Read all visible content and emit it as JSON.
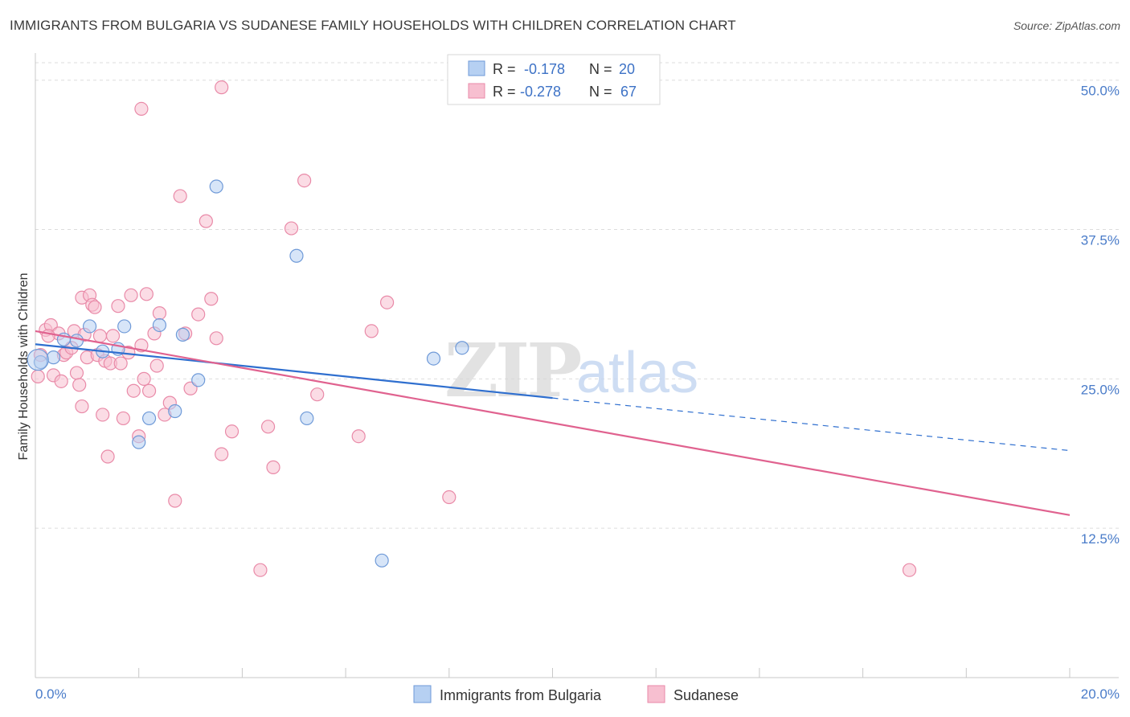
{
  "title": "IMMIGRANTS FROM BULGARIA VS SUDANESE FAMILY HOUSEHOLDS WITH CHILDREN CORRELATION CHART",
  "source": "Source: ZipAtlas.com",
  "watermark": {
    "zip": "ZIP",
    "atlas": "atlas"
  },
  "colors": {
    "blue_fill": "#b6d0f2",
    "blue_stroke": "#6f9ad8",
    "blue_line": "#2f6fcf",
    "pink_fill": "#f7bfd0",
    "pink_stroke": "#e98aa8",
    "pink_line": "#e0628f",
    "axis_text": "#4a7cc9",
    "grid": "#dddddd"
  },
  "legend": {
    "rows": [
      {
        "r_label": "R =",
        "r_value": "-0.178",
        "n_label": "N =",
        "n_value": "20"
      },
      {
        "r_label": "R =",
        "r_value": "-0.278",
        "n_label": "N =",
        "n_value": "67"
      }
    ]
  },
  "bottom_legend": [
    "Immigrants from Bulgaria",
    "Sudanese"
  ],
  "chart_data": {
    "type": "scatter",
    "title": "IMMIGRANTS FROM BULGARIA VS SUDANESE FAMILY HOUSEHOLDS WITH CHILDREN CORRELATION CHART",
    "xlabel": "",
    "ylabel": "Family Households with Children",
    "xlim": [
      0,
      20
    ],
    "ylim": [
      0,
      52
    ],
    "x_tick_labels": [
      "0.0%",
      "20.0%"
    ],
    "y_ticks": [
      12.5,
      25.0,
      37.5,
      50.0
    ],
    "y_tick_labels": [
      "12.5%",
      "25.0%",
      "37.5%",
      "50.0%"
    ],
    "grid": true,
    "legend_position": "top-center",
    "series": [
      {
        "name": "Immigrants from Bulgaria",
        "color": "#b6d0f2",
        "points": [
          [
            0.1,
            26.4
          ],
          [
            0.35,
            26.8
          ],
          [
            0.8,
            28.2
          ],
          [
            1.05,
            29.4
          ],
          [
            1.3,
            27.3
          ],
          [
            1.6,
            27.5
          ],
          [
            1.72,
            29.4
          ],
          [
            2.0,
            19.7
          ],
          [
            2.2,
            21.7
          ],
          [
            2.4,
            29.5
          ],
          [
            2.7,
            22.3
          ],
          [
            2.85,
            28.7
          ],
          [
            3.15,
            24.9
          ],
          [
            3.5,
            41.1
          ],
          [
            5.05,
            35.3
          ],
          [
            5.25,
            21.7
          ],
          [
            6.7,
            9.8
          ],
          [
            7.7,
            26.7
          ],
          [
            8.25,
            27.6
          ],
          [
            0.55,
            28.3
          ]
        ],
        "trend": {
          "x": [
            0,
            10
          ],
          "y": [
            27.9,
            23.4
          ],
          "dashed_to": [
            20,
            19.0
          ]
        }
      },
      {
        "name": "Sudanese",
        "color": "#f7bfd0",
        "points": [
          [
            0.05,
            25.2
          ],
          [
            0.1,
            27.0
          ],
          [
            0.2,
            29.1
          ],
          [
            0.3,
            29.5
          ],
          [
            0.35,
            25.3
          ],
          [
            0.45,
            28.8
          ],
          [
            0.5,
            24.8
          ],
          [
            0.55,
            27.0
          ],
          [
            0.6,
            27.2
          ],
          [
            0.7,
            27.6
          ],
          [
            0.75,
            29.0
          ],
          [
            0.8,
            25.5
          ],
          [
            0.85,
            24.5
          ],
          [
            0.9,
            31.8
          ],
          [
            0.95,
            28.7
          ],
          [
            1.0,
            26.8
          ],
          [
            1.05,
            32.0
          ],
          [
            1.1,
            31.2
          ],
          [
            1.15,
            31.0
          ],
          [
            1.2,
            27.0
          ],
          [
            1.3,
            22.0
          ],
          [
            1.35,
            26.5
          ],
          [
            1.4,
            18.5
          ],
          [
            1.45,
            26.3
          ],
          [
            1.5,
            28.6
          ],
          [
            1.6,
            31.1
          ],
          [
            1.65,
            26.3
          ],
          [
            1.7,
            21.7
          ],
          [
            1.8,
            27.2
          ],
          [
            1.85,
            32.0
          ],
          [
            1.9,
            24.0
          ],
          [
            2.0,
            20.2
          ],
          [
            2.05,
            27.8
          ],
          [
            2.1,
            25.0
          ],
          [
            2.15,
            32.1
          ],
          [
            2.2,
            24.0
          ],
          [
            2.3,
            28.8
          ],
          [
            2.35,
            26.1
          ],
          [
            2.5,
            22.0
          ],
          [
            2.4,
            30.5
          ],
          [
            2.6,
            23.0
          ],
          [
            2.7,
            14.8
          ],
          [
            2.8,
            40.3
          ],
          [
            2.9,
            28.8
          ],
          [
            3.0,
            24.2
          ],
          [
            3.15,
            30.4
          ],
          [
            3.3,
            38.2
          ],
          [
            3.4,
            31.7
          ],
          [
            3.5,
            28.4
          ],
          [
            3.6,
            18.7
          ],
          [
            3.8,
            20.6
          ],
          [
            2.05,
            47.6
          ],
          [
            3.6,
            49.4
          ],
          [
            4.35,
            9.0
          ],
          [
            4.5,
            21.0
          ],
          [
            4.6,
            17.6
          ],
          [
            4.95,
            37.6
          ],
          [
            5.2,
            41.6
          ],
          [
            5.45,
            23.7
          ],
          [
            6.25,
            20.2
          ],
          [
            6.5,
            29.0
          ],
          [
            6.8,
            31.4
          ],
          [
            8.0,
            15.1
          ],
          [
            16.9,
            9.0
          ],
          [
            0.25,
            28.6
          ],
          [
            0.9,
            22.7
          ],
          [
            1.25,
            28.6
          ]
        ],
        "trend": {
          "x": [
            0,
            20
          ],
          "y": [
            29.0,
            13.6
          ]
        }
      }
    ]
  }
}
